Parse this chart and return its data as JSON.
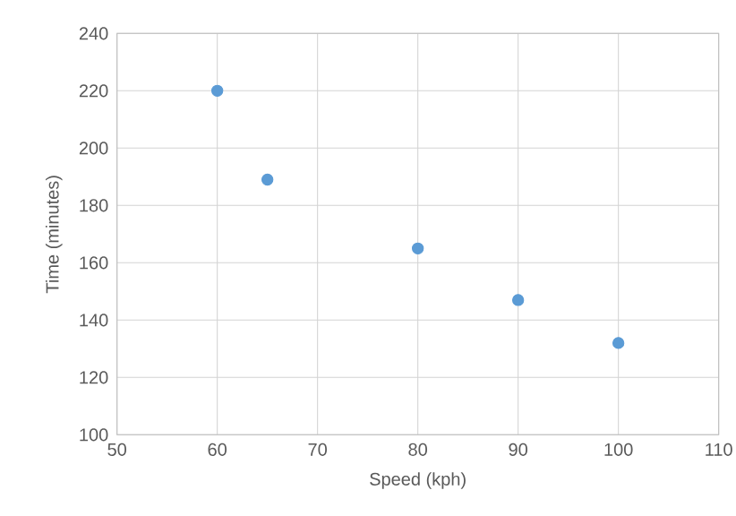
{
  "chart_data": {
    "type": "scatter",
    "xlabel": "Speed (kph)",
    "ylabel": "Time (minutes)",
    "x": [
      60,
      65,
      80,
      90,
      100
    ],
    "series": [
      {
        "color": "#5b9bd5",
        "values": [
          220,
          189,
          165,
          147,
          132
        ]
      }
    ],
    "xlim": [
      50,
      110
    ],
    "xticks": [
      50,
      60,
      70,
      80,
      90,
      100,
      110
    ],
    "ylim": [
      100,
      240
    ],
    "yticks": [
      100,
      120,
      140,
      160,
      180,
      200,
      220,
      240
    ],
    "grid": true,
    "marker": "circle"
  }
}
